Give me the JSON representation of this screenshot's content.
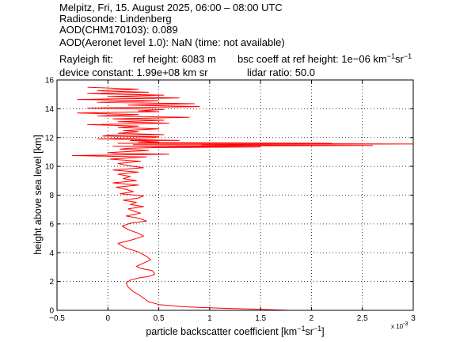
{
  "header": {
    "line1": "Melpitz, Fri, 15. August 2025, 06:00 – 08:00 UTC",
    "line2": "Radiosonde: Lindenberg",
    "line3": "AOD(CHM170103): 0.089",
    "line4": "AOD(Aeronet level 1.0): NaN   (time: not available)",
    "rayleigh_label": "Rayleigh fit:",
    "ref_height": "ref height: 6083 m",
    "bsc_coeff_prefix": "bsc coeff at ref height: 1e−06 km",
    "bsc_sup1": "−1",
    "bsc_mid": "sr",
    "bsc_sup2": "−1",
    "device_constant": "device constant: 1.99e+08 km sr",
    "lidar_ratio": "lidar ratio: 50.0"
  },
  "axes": {
    "xlabel_prefix": "particle backscatter coefficient [km",
    "xlabel_sup1": "−1",
    "xlabel_mid": "sr",
    "xlabel_sup2": "−1",
    "xlabel_suffix": "]",
    "ylabel": "height above sea level [km]",
    "x_multiplier_base": "x 10",
    "x_multiplier_exp": "-3"
  },
  "colors": {
    "line": "#ff0000",
    "axis": "#000000",
    "grid": "#000000"
  },
  "chart_data": {
    "type": "line",
    "xlim": [
      -0.5,
      3
    ],
    "ylim": [
      0,
      16
    ],
    "x_ticks": [
      -0.5,
      0,
      0.5,
      1,
      1.5,
      2,
      2.5,
      3
    ],
    "x_tick_labels": [
      "−0.5",
      "0",
      "0.5",
      "1",
      "1.5",
      "2",
      "2.5",
      "3"
    ],
    "y_ticks": [
      0,
      2,
      4,
      6,
      8,
      10,
      12,
      14,
      16
    ],
    "y_tick_labels": [
      "0",
      "2",
      "4",
      "6",
      "8",
      "10",
      "12",
      "14",
      "16"
    ],
    "grid": true,
    "x_scale_factor": 0.001,
    "series": [
      {
        "x": [
          1.78,
          1.45,
          1.1,
          0.75,
          0.5,
          0.4,
          0.35,
          0.3,
          0.25,
          0.2,
          0.18,
          0.22,
          0.3,
          0.4,
          0.46,
          0.44,
          0.33,
          0.28,
          0.34,
          0.42,
          0.38,
          0.3,
          0.17,
          0.1,
          0.24,
          0.35,
          0.3,
          0.2,
          0.14,
          0.22,
          0.38,
          0.3,
          0.18,
          0.32,
          0.25,
          0.2,
          0.35,
          0.22,
          0.28,
          0.15,
          0.3,
          0.35,
          0.12,
          0.25,
          0.18,
          0.08,
          0.3,
          0.05,
          0.28,
          0.15,
          0.22,
          0.1,
          0.3,
          0.05,
          0.35,
          0.2,
          0.1,
          0.32,
          0.02,
          0.38,
          0.15,
          0.0,
          0.4,
          0.12,
          0.45,
          0.05,
          0.25,
          0.1,
          0.5,
          0.22,
          0.0,
          0.45,
          -0.05,
          0.55,
          0.1,
          0.3,
          0.15,
          0.5,
          0.1,
          0.3,
          -0.2,
          0.6,
          0.1,
          0.55,
          0.05,
          0.8,
          -0.1,
          0.3,
          -0.3,
          0.5,
          0.2,
          1.5,
          0.2,
          2.6,
          3.0,
          2.2,
          0.3,
          -0.35,
          0.6,
          0.1,
          0.7,
          -0.1,
          0.5,
          0.0,
          0.3,
          0.55,
          -0.2,
          0.9,
          0.2,
          0.85,
          -0.1,
          0.5,
          -0.3,
          0.7,
          0.0,
          0.55,
          -0.2,
          0.4,
          -0.1,
          0.3,
          -0.2
        ],
        "y": [
          0.0,
          0.08,
          0.15,
          0.25,
          0.4,
          0.6,
          0.85,
          1.1,
          1.3,
          1.6,
          1.9,
          2.1,
          2.25,
          2.35,
          2.5,
          2.75,
          2.9,
          3.05,
          3.25,
          3.5,
          3.75,
          4.05,
          4.35,
          4.65,
          4.9,
          5.15,
          5.35,
          5.6,
          5.85,
          6.05,
          6.2,
          6.4,
          6.55,
          6.75,
          6.9,
          7.05,
          7.2,
          7.35,
          7.5,
          7.65,
          7.8,
          7.95,
          8.1,
          8.25,
          8.4,
          8.55,
          8.7,
          8.85,
          9.0,
          9.15,
          9.3,
          9.45,
          9.6,
          9.75,
          9.9,
          10.05,
          10.2,
          10.35,
          10.5,
          10.65,
          10.8,
          10.95,
          11.1,
          11.2,
          11.3,
          11.4,
          11.5,
          11.6,
          11.7,
          11.8,
          11.9,
          12.0,
          12.1,
          12.2,
          12.3,
          12.4,
          12.5,
          12.6,
          12.7,
          12.8,
          12.9,
          13.0,
          13.1,
          13.2,
          13.3,
          13.4,
          13.5,
          13.6,
          13.7,
          13.8,
          11.25,
          11.35,
          11.4,
          11.45,
          11.55,
          11.6,
          11.65,
          10.75,
          10.85,
          10.9,
          11.8,
          11.9,
          12.05,
          12.15,
          13.85,
          13.95,
          14.05,
          14.15,
          14.25,
          14.35,
          14.45,
          14.55,
          14.65,
          14.75,
          14.85,
          14.95,
          15.05,
          15.15,
          15.25,
          15.35,
          15.5
        ]
      }
    ]
  }
}
